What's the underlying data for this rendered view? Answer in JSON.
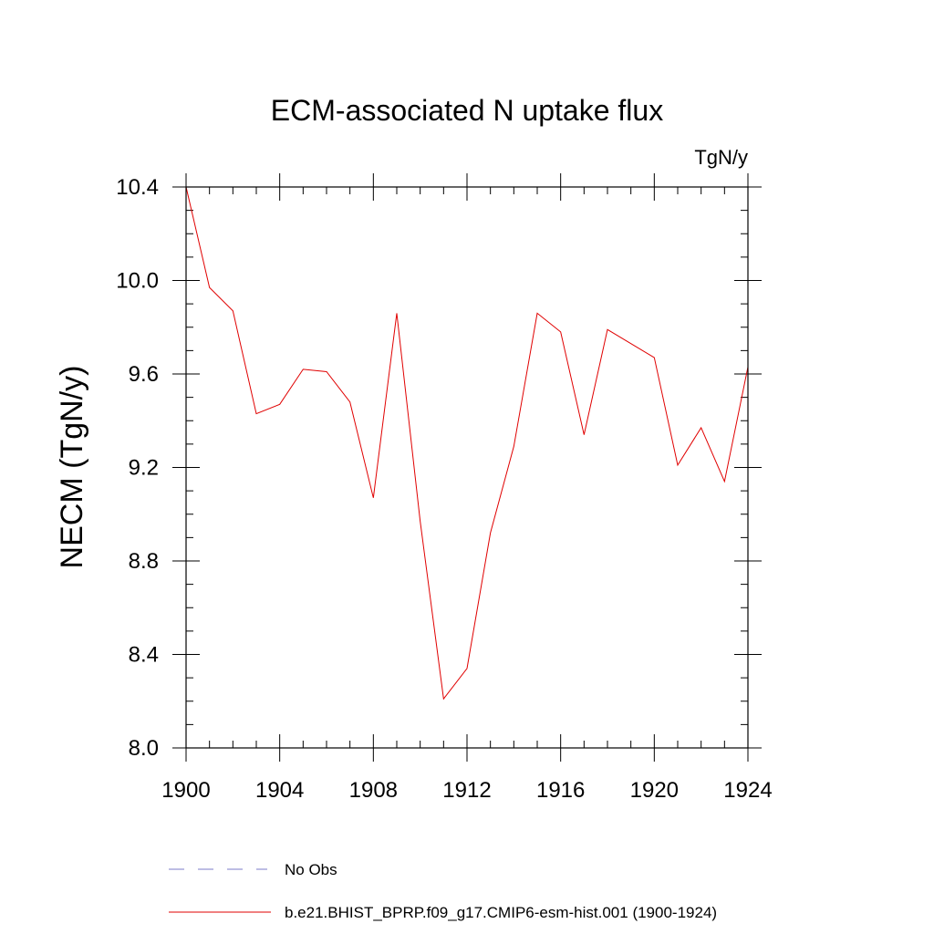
{
  "chart_data": {
    "type": "line",
    "title": "ECM-associated N uptake flux",
    "units": "TgN/y",
    "xlabel": "",
    "ylabel": "NECM  (TgN/y)",
    "xlim": [
      1900,
      1924
    ],
    "ylim": [
      8.0,
      10.4
    ],
    "x_ticks": [
      1900,
      1904,
      1908,
      1912,
      1916,
      1920,
      1924
    ],
    "y_ticks": [
      8.0,
      8.4,
      8.8,
      9.2,
      9.6,
      10.0,
      10.4
    ],
    "y_tick_labels": [
      "8.0",
      "8.4",
      "8.8",
      "9.2",
      "9.6",
      "10.0",
      "10.4"
    ],
    "x_minor_step": 1,
    "y_minor_step": 0.1,
    "grid": false,
    "legend_position": "bottom",
    "series": [
      {
        "name": "No Obs",
        "color": "#7b7bc8",
        "style": "dashed",
        "x": [],
        "values": []
      },
      {
        "name": "b.e21.BHIST_BPRP.f09_g17.CMIP6-esm-hist.001 (1900-1924)",
        "color": "#e00000",
        "style": "solid",
        "x": [
          1900,
          1901,
          1902,
          1903,
          1904,
          1905,
          1906,
          1907,
          1908,
          1909,
          1910,
          1911,
          1912,
          1913,
          1914,
          1915,
          1916,
          1917,
          1918,
          1919,
          1920,
          1921,
          1922,
          1923,
          1924
        ],
        "values": [
          10.4,
          9.97,
          9.87,
          9.43,
          9.47,
          9.62,
          9.61,
          9.48,
          9.07,
          9.86,
          8.97,
          8.21,
          8.34,
          8.92,
          9.29,
          9.86,
          9.78,
          9.34,
          9.79,
          9.73,
          9.67,
          9.21,
          9.37,
          9.14,
          9.63
        ]
      }
    ]
  }
}
